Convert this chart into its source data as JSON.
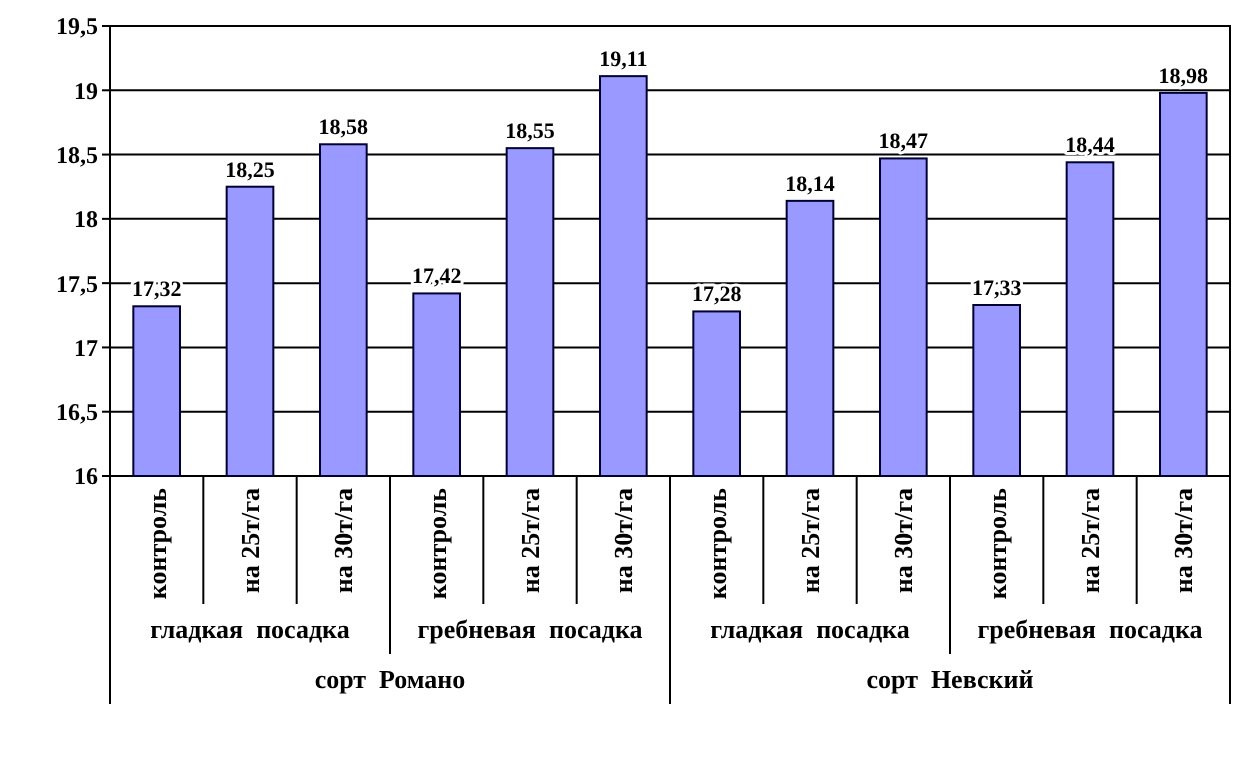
{
  "chart_data": {
    "type": "bar",
    "categories": [
      "контроль",
      "на 25т/га",
      "на 30т/га",
      "контроль",
      "на 25т/га",
      "на 30т/га",
      "контроль",
      "на 25т/га",
      "на 30т/га",
      "контроль",
      "на 25т/га",
      "на 30т/га"
    ],
    "values": [
      17.32,
      18.25,
      18.58,
      17.42,
      18.55,
      19.11,
      17.28,
      18.14,
      18.47,
      17.33,
      18.44,
      18.98
    ],
    "value_labels": [
      "17,32",
      "18,25",
      "18,58",
      "17,42",
      "18,55",
      "19,11",
      "17,28",
      "18,14",
      "18,47",
      "17,33",
      "18,44",
      "18,98"
    ],
    "color": "#9999ff",
    "ylim": [
      16,
      19.5
    ],
    "yticks": [
      16,
      {
        "value": 16.5,
        "label": "16,5"
      },
      17,
      {
        "value": 17.5,
        "label": "17,5"
      },
      18,
      {
        "value": 18.5,
        "label": "18,5"
      },
      19,
      {
        "value": 19.5,
        "label": "19,5"
      }
    ],
    "grid": "y",
    "annotations": [
      "гладкая  посадка",
      "гребневая  посадка",
      "гладкая  посадка",
      "гребневая  посадка",
      "сорт  Романо",
      "сорт  Невский"
    ]
  }
}
